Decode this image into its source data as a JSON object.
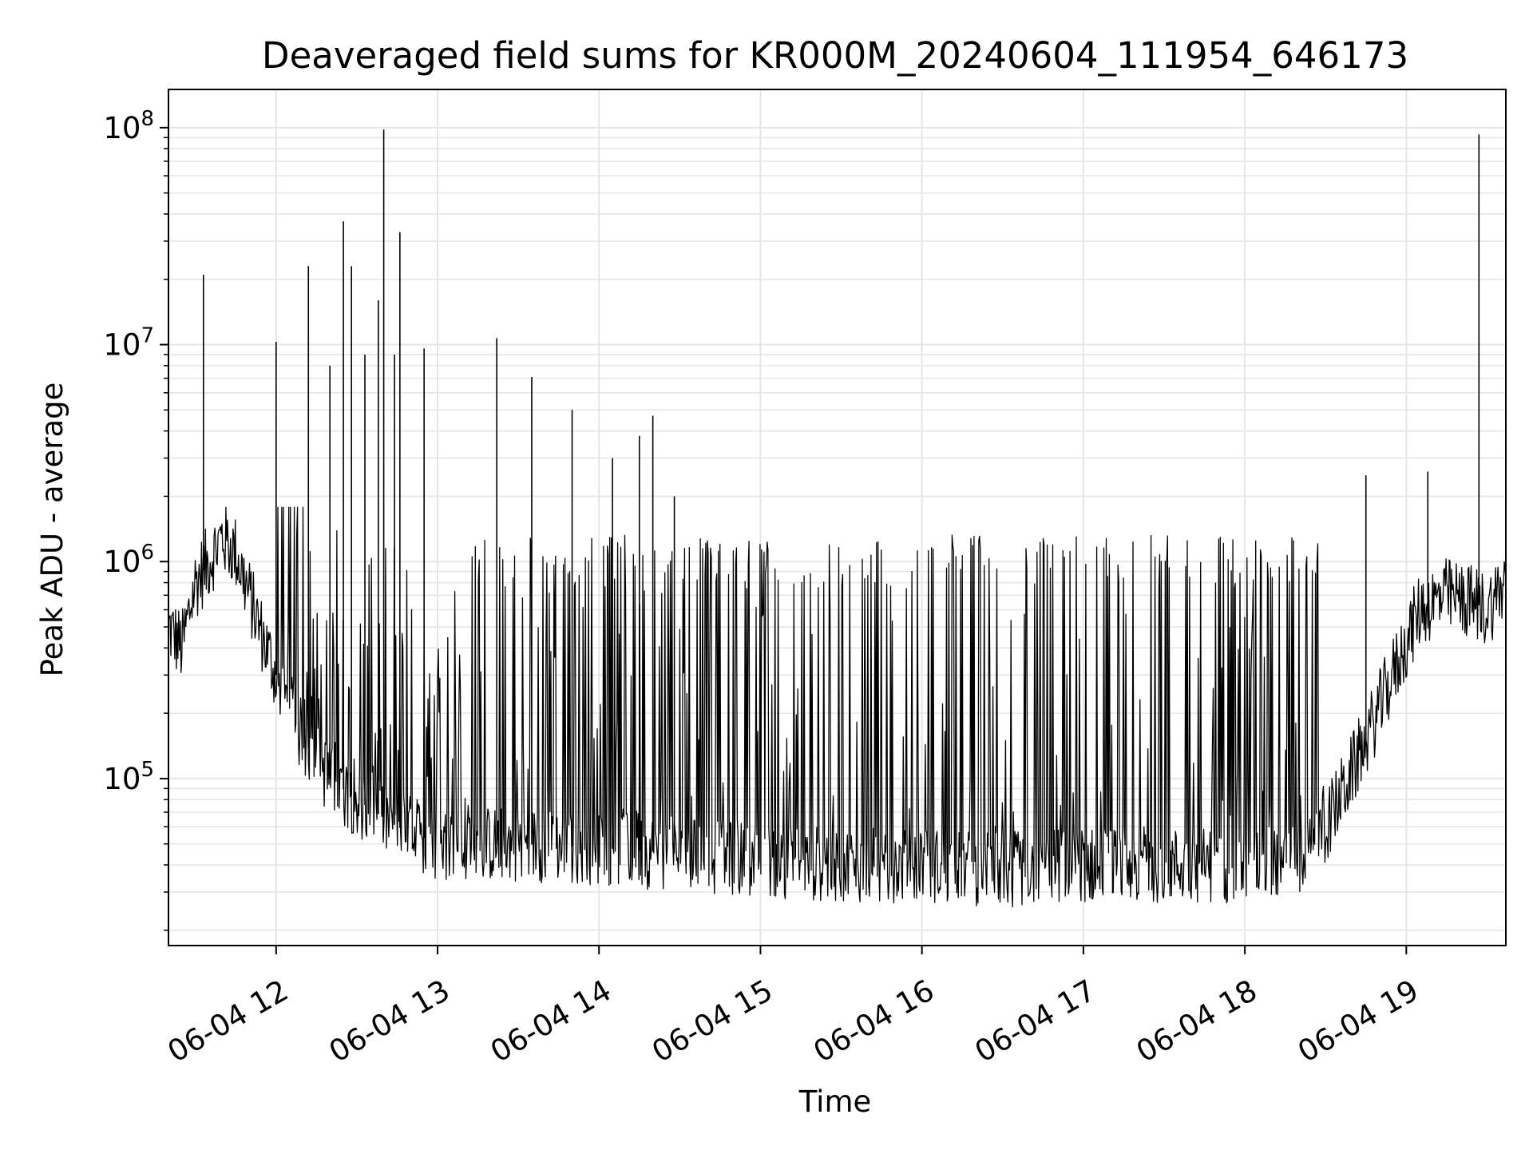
{
  "chart_data": {
    "type": "line",
    "title": "Deaveraged field sums for KR000M_20240604_111954_646173",
    "xlabel": "Time",
    "ylabel": "Peak ADU - average",
    "yscale": "log",
    "ylim": [
      17000,
      150000000
    ],
    "xlim": [
      "2024-06-04 11:20",
      "2024-06-04 19:37"
    ],
    "grid": true,
    "line_color": "#000000",
    "grid_color": "#e6e6e6",
    "x_ticks": [
      {
        "t": "2024-06-04 12:00",
        "label": "06-04 12"
      },
      {
        "t": "2024-06-04 13:00",
        "label": "06-04 13"
      },
      {
        "t": "2024-06-04 14:00",
        "label": "06-04 14"
      },
      {
        "t": "2024-06-04 15:00",
        "label": "06-04 15"
      },
      {
        "t": "2024-06-04 16:00",
        "label": "06-04 16"
      },
      {
        "t": "2024-06-04 17:00",
        "label": "06-04 17"
      },
      {
        "t": "2024-06-04 18:00",
        "label": "06-04 18"
      },
      {
        "t": "2024-06-04 19:00",
        "label": "06-04 19"
      }
    ],
    "y_ticks": [
      {
        "value": 100000,
        "base": "10",
        "exp": "5"
      },
      {
        "value": 1000000,
        "base": "10",
        "exp": "6"
      },
      {
        "value": 10000000,
        "base": "10",
        "exp": "7"
      },
      {
        "value": 100000000,
        "base": "10",
        "exp": "8"
      }
    ],
    "series": [
      {
        "points": [
          [
            "2024-06-04 11:20",
            500000
          ],
          [
            "2024-06-04 11:25",
            400000
          ],
          [
            "2024-06-04 11:30",
            800000
          ],
          [
            "2024-06-04 11:35",
            1000000
          ],
          [
            "2024-06-04 11:40",
            1300000
          ],
          [
            "2024-06-04 11:45",
            1100000
          ],
          [
            "2024-06-04 11:50",
            700000
          ],
          [
            "2024-06-04 11:55",
            450000
          ],
          [
            "2024-06-04 12:00",
            300000
          ],
          [
            "2024-06-04 12:10",
            150000
          ],
          [
            "2024-06-04 12:20",
            100000
          ],
          [
            "2024-06-04 12:30",
            80000
          ],
          [
            "2024-06-04 12:45",
            60000
          ],
          [
            "2024-06-04 13:00",
            50000
          ],
          [
            "2024-06-04 13:30",
            50000
          ],
          [
            "2024-06-04 14:00",
            48000
          ],
          [
            "2024-06-04 14:30",
            45000
          ],
          [
            "2024-06-04 15:00",
            42000
          ],
          [
            "2024-06-04 15:30",
            40000
          ],
          [
            "2024-06-04 16:00",
            40000
          ],
          [
            "2024-06-04 16:30",
            38000
          ],
          [
            "2024-06-04 17:00",
            40000
          ],
          [
            "2024-06-04 17:30",
            40000
          ],
          [
            "2024-06-04 18:00",
            40000
          ],
          [
            "2024-06-04 18:25",
            45000
          ],
          [
            "2024-06-04 18:35",
            80000
          ],
          [
            "2024-06-04 18:45",
            150000
          ],
          [
            "2024-06-04 18:55",
            300000
          ],
          [
            "2024-06-04 19:05",
            600000
          ],
          [
            "2024-06-04 19:15",
            700000
          ],
          [
            "2024-06-04 19:25",
            650000
          ],
          [
            "2024-06-04 19:30",
            600000
          ],
          [
            "2024-06-04 19:37",
            800000
          ]
        ],
        "spikes": [
          [
            "2024-06-04 11:33",
            21000000
          ],
          [
            "2024-06-04 12:00",
            10300000
          ],
          [
            "2024-06-04 12:12",
            23000000
          ],
          [
            "2024-06-04 12:20",
            8000000
          ],
          [
            "2024-06-04 12:25",
            37000000
          ],
          [
            "2024-06-04 12:28",
            23000000
          ],
          [
            "2024-06-04 12:33",
            9000000
          ],
          [
            "2024-06-04 12:38",
            16000000
          ],
          [
            "2024-06-04 12:40",
            98000000
          ],
          [
            "2024-06-04 12:44",
            9000000
          ],
          [
            "2024-06-04 12:46",
            33000000
          ],
          [
            "2024-06-04 12:55",
            9600000
          ],
          [
            "2024-06-04 13:22",
            10700000
          ],
          [
            "2024-06-04 13:35",
            7100000
          ],
          [
            "2024-06-04 13:50",
            5000000
          ],
          [
            "2024-06-04 14:05",
            3000000
          ],
          [
            "2024-06-04 14:15",
            3800000
          ],
          [
            "2024-06-04 14:20",
            4700000
          ],
          [
            "2024-06-04 14:28",
            2000000
          ],
          [
            "2024-06-04 18:45",
            2500000
          ],
          [
            "2024-06-04 19:08",
            2600000
          ],
          [
            "2024-06-04 19:27",
            93000000
          ]
        ]
      }
    ]
  }
}
